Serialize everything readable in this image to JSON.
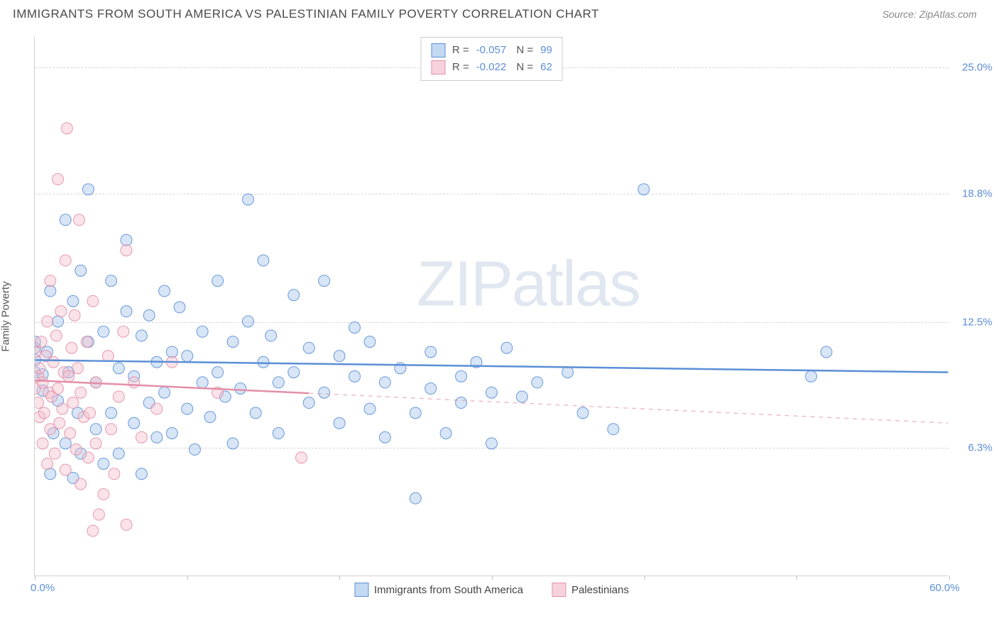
{
  "header": {
    "title": "IMMIGRANTS FROM SOUTH AMERICA VS PALESTINIAN FAMILY POVERTY CORRELATION CHART",
    "source": "Source: ZipAtlas.com"
  },
  "watermark": "ZIPatlas",
  "chart": {
    "type": "scatter",
    "ylabel": "Family Poverty",
    "xlim": [
      0.0,
      60.0
    ],
    "ylim": [
      0.0,
      26.5
    ],
    "xtick_positions": [
      0,
      10,
      20,
      30,
      40,
      50,
      60
    ],
    "yticks": [
      {
        "v": 6.3,
        "label": "6.3%"
      },
      {
        "v": 12.5,
        "label": "12.5%"
      },
      {
        "v": 18.8,
        "label": "18.8%"
      },
      {
        "v": 25.0,
        "label": "25.0%"
      }
    ],
    "xlabel_min": "0.0%",
    "xlabel_max": "60.0%",
    "background_color": "#ffffff",
    "grid_color": "#d8d8d8",
    "axis_label_color": "#5b8fd6",
    "marker_radius": 8,
    "marker_fill_opacity": 0.45,
    "marker_stroke_opacity": 0.9,
    "marker_stroke_width": 1,
    "series": [
      {
        "name": "Immigrants from South America",
        "fill": "#a7c6ec",
        "stroke": "#5b8fd6",
        "R": "-0.057",
        "N": "99",
        "regression": {
          "y_at_xmin": 10.6,
          "y_at_xmax": 10.0,
          "solid_until": 60.0
        },
        "points": [
          [
            0.0,
            11.2
          ],
          [
            0.0,
            10.6
          ],
          [
            0.0,
            11.5
          ],
          [
            0.0,
            10.0
          ],
          [
            0.5,
            9.1
          ],
          [
            0.5,
            9.9
          ],
          [
            0.8,
            11.0
          ],
          [
            1.0,
            5.0
          ],
          [
            1.0,
            14.0
          ],
          [
            1.2,
            7.0
          ],
          [
            1.5,
            8.6
          ],
          [
            1.5,
            12.5
          ],
          [
            2.0,
            17.5
          ],
          [
            2.0,
            6.5
          ],
          [
            2.2,
            10.0
          ],
          [
            2.5,
            13.5
          ],
          [
            2.5,
            4.8
          ],
          [
            2.8,
            8.0
          ],
          [
            3.0,
            15.0
          ],
          [
            3.0,
            6.0
          ],
          [
            3.5,
            11.5
          ],
          [
            3.5,
            19.0
          ],
          [
            4.0,
            9.5
          ],
          [
            4.0,
            7.2
          ],
          [
            4.5,
            12.0
          ],
          [
            4.5,
            5.5
          ],
          [
            5.0,
            14.5
          ],
          [
            5.0,
            8.0
          ],
          [
            5.5,
            10.2
          ],
          [
            5.5,
            6.0
          ],
          [
            6.0,
            13.0
          ],
          [
            6.0,
            16.5
          ],
          [
            6.5,
            9.8
          ],
          [
            6.5,
            7.5
          ],
          [
            7.0,
            11.8
          ],
          [
            7.0,
            5.0
          ],
          [
            7.5,
            8.5
          ],
          [
            7.5,
            12.8
          ],
          [
            8.0,
            10.5
          ],
          [
            8.0,
            6.8
          ],
          [
            8.5,
            9.0
          ],
          [
            8.5,
            14.0
          ],
          [
            9.0,
            11.0
          ],
          [
            9.0,
            7.0
          ],
          [
            9.5,
            13.2
          ],
          [
            10.0,
            8.2
          ],
          [
            10.0,
            10.8
          ],
          [
            10.5,
            6.2
          ],
          [
            11.0,
            12.0
          ],
          [
            11.0,
            9.5
          ],
          [
            11.5,
            7.8
          ],
          [
            12.0,
            10.0
          ],
          [
            12.0,
            14.5
          ],
          [
            12.5,
            8.8
          ],
          [
            13.0,
            11.5
          ],
          [
            13.0,
            6.5
          ],
          [
            13.5,
            9.2
          ],
          [
            14.0,
            12.5
          ],
          [
            14.0,
            18.5
          ],
          [
            14.5,
            8.0
          ],
          [
            15.0,
            10.5
          ],
          [
            15.0,
            15.5
          ],
          [
            15.5,
            11.8
          ],
          [
            16.0,
            9.5
          ],
          [
            16.0,
            7.0
          ],
          [
            17.0,
            13.8
          ],
          [
            17.0,
            10.0
          ],
          [
            18.0,
            8.5
          ],
          [
            18.0,
            11.2
          ],
          [
            19.0,
            14.5
          ],
          [
            19.0,
            9.0
          ],
          [
            20.0,
            10.8
          ],
          [
            20.0,
            7.5
          ],
          [
            21.0,
            12.2
          ],
          [
            21.0,
            9.8
          ],
          [
            22.0,
            8.2
          ],
          [
            22.0,
            11.5
          ],
          [
            23.0,
            9.5
          ],
          [
            23.0,
            6.8
          ],
          [
            24.0,
            10.2
          ],
          [
            25.0,
            3.8
          ],
          [
            25.0,
            8.0
          ],
          [
            26.0,
            9.2
          ],
          [
            26.0,
            11.0
          ],
          [
            27.0,
            7.0
          ],
          [
            28.0,
            9.8
          ],
          [
            28.0,
            8.5
          ],
          [
            29.0,
            10.5
          ],
          [
            30.0,
            6.5
          ],
          [
            30.0,
            9.0
          ],
          [
            31.0,
            11.2
          ],
          [
            32.0,
            8.8
          ],
          [
            33.0,
            9.5
          ],
          [
            35.0,
            10.0
          ],
          [
            36.0,
            8.0
          ],
          [
            38.0,
            7.2
          ],
          [
            40.0,
            19.0
          ],
          [
            51.0,
            9.8
          ],
          [
            52.0,
            11.0
          ]
        ]
      },
      {
        "name": "Palestinians",
        "fill": "#f3c1cf",
        "stroke": "#e38fa8",
        "R": "-0.022",
        "N": "62",
        "regression": {
          "y_at_xmin": 9.6,
          "y_at_xmax": 7.5,
          "solid_until": 18.0
        },
        "points": [
          [
            0.0,
            11.0
          ],
          [
            0.0,
            9.2
          ],
          [
            0.2,
            9.8
          ],
          [
            0.2,
            8.5
          ],
          [
            0.3,
            10.2
          ],
          [
            0.3,
            7.8
          ],
          [
            0.4,
            11.5
          ],
          [
            0.5,
            6.5
          ],
          [
            0.5,
            9.5
          ],
          [
            0.6,
            8.0
          ],
          [
            0.7,
            10.8
          ],
          [
            0.8,
            5.5
          ],
          [
            0.8,
            12.5
          ],
          [
            0.9,
            9.0
          ],
          [
            1.0,
            7.2
          ],
          [
            1.0,
            14.5
          ],
          [
            1.1,
            8.8
          ],
          [
            1.2,
            10.5
          ],
          [
            1.3,
            6.0
          ],
          [
            1.4,
            11.8
          ],
          [
            1.5,
            19.5
          ],
          [
            1.5,
            9.2
          ],
          [
            1.6,
            7.5
          ],
          [
            1.7,
            13.0
          ],
          [
            1.8,
            8.2
          ],
          [
            1.9,
            10.0
          ],
          [
            2.0,
            5.2
          ],
          [
            2.0,
            15.5
          ],
          [
            2.1,
            22.0
          ],
          [
            2.2,
            9.8
          ],
          [
            2.3,
            7.0
          ],
          [
            2.4,
            11.2
          ],
          [
            2.5,
            8.5
          ],
          [
            2.6,
            12.8
          ],
          [
            2.7,
            6.2
          ],
          [
            2.8,
            10.2
          ],
          [
            2.9,
            17.5
          ],
          [
            3.0,
            9.0
          ],
          [
            3.0,
            4.5
          ],
          [
            3.2,
            7.8
          ],
          [
            3.4,
            11.5
          ],
          [
            3.5,
            5.8
          ],
          [
            3.6,
            8.0
          ],
          [
            3.8,
            2.2
          ],
          [
            3.8,
            13.5
          ],
          [
            4.0,
            6.5
          ],
          [
            4.0,
            9.5
          ],
          [
            4.2,
            3.0
          ],
          [
            4.5,
            4.0
          ],
          [
            4.8,
            10.8
          ],
          [
            5.0,
            7.2
          ],
          [
            5.2,
            5.0
          ],
          [
            5.5,
            8.8
          ],
          [
            5.8,
            12.0
          ],
          [
            6.0,
            2.5
          ],
          [
            6.0,
            16.0
          ],
          [
            6.5,
            9.5
          ],
          [
            7.0,
            6.8
          ],
          [
            8.0,
            8.2
          ],
          [
            9.0,
            10.5
          ],
          [
            12.0,
            9.0
          ],
          [
            17.5,
            5.8
          ]
        ]
      }
    ],
    "legend_bottom": [
      {
        "color": "blue",
        "label": "Immigrants from South America"
      },
      {
        "color": "pink",
        "label": "Palestinians"
      }
    ]
  }
}
